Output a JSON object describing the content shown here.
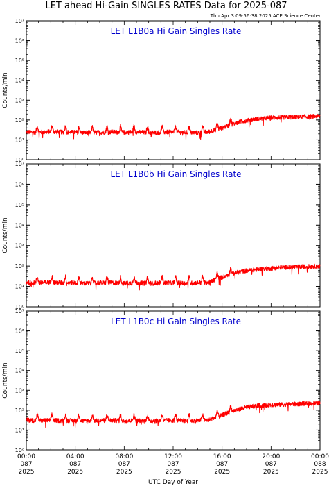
{
  "title": "LET ahead Hi-Gain SINGLES RATES Data for 2025-087",
  "timestamp": "Thu Apr  3 09:56:38 2025 ACE Science Center",
  "xlabel": "UTC Day of Year",
  "colors": {
    "trace": "#ff0000",
    "panel_title": "#0000cc",
    "axis": "#000000"
  },
  "chart_data": [
    {
      "type": "line",
      "title": "LET L1B0a Hi Gain Singles Rate",
      "ylabel": "Counts/min",
      "yscale": "log",
      "ylim": [
        1,
        10000000
      ],
      "ytick_labels": [
        "10⁰",
        "10¹",
        "10²",
        "10³",
        "10⁴",
        "10⁵",
        "10⁶",
        "10⁷"
      ],
      "xlim": [
        "087 00:00",
        "088 00:00"
      ],
      "series": [
        {
          "values_by_hour": [
            25,
            24,
            26,
            25,
            24,
            23,
            24,
            25,
            24,
            25,
            23,
            24,
            25,
            24,
            23,
            26,
            40,
            65,
            95,
            115,
            130,
            135,
            140,
            150,
            155
          ],
          "spikes_by_hour": [
            0.9,
            2.1,
            3.2,
            4.3,
            5.4,
            6.6,
            7.7,
            8.8,
            9.9,
            11.1,
            12.2,
            13.3,
            14.4,
            15.6,
            16.7
          ]
        }
      ]
    },
    {
      "type": "line",
      "title": "LET L1B0b Hi Gain Singles Rate",
      "ylabel": "Counts/min",
      "yscale": "log",
      "ylim": [
        1,
        10000000
      ],
      "ytick_labels": [
        "10⁰",
        "10¹",
        "10²",
        "10³",
        "10⁴",
        "10⁵",
        "10⁶",
        "10⁷"
      ],
      "xlim": [
        "087 00:00",
        "088 00:00"
      ],
      "series": [
        {
          "values_by_hour": [
            16,
            15,
            16,
            15,
            15,
            14,
            15,
            15,
            14,
            15,
            14,
            15,
            15,
            14,
            15,
            16,
            28,
            45,
            60,
            70,
            78,
            85,
            90,
            95,
            100
          ],
          "spikes_by_hour": [
            0.9,
            2.1,
            3.2,
            4.3,
            5.4,
            6.6,
            7.7,
            8.8,
            9.9,
            11.1,
            12.2,
            13.3,
            14.4,
            15.6,
            16.7
          ]
        }
      ]
    },
    {
      "type": "line",
      "title": "LET L1B0c Hi Gain Singles Rate",
      "ylabel": "Counts/min",
      "yscale": "log",
      "ylim": [
        1,
        10000000
      ],
      "ytick_labels": [
        "10⁰",
        "10¹",
        "10²",
        "10³",
        "10⁴",
        "10⁵",
        "10⁶",
        "10⁷"
      ],
      "xlim": [
        "087 00:00",
        "088 00:00"
      ],
      "series": [
        {
          "values_by_hour": [
            32,
            30,
            31,
            30,
            30,
            29,
            30,
            31,
            29,
            30,
            29,
            30,
            31,
            29,
            30,
            33,
            55,
            95,
            140,
            170,
            185,
            195,
            205,
            215,
            225
          ],
          "spikes_by_hour": [
            0.9,
            2.1,
            3.2,
            4.3,
            5.4,
            6.6,
            7.7,
            8.8,
            9.9,
            11.1,
            12.2,
            13.3,
            14.4,
            15.6,
            16.7
          ]
        }
      ]
    }
  ],
  "xticks": [
    {
      "time": "00:00",
      "day": "087",
      "year": "2025"
    },
    {
      "time": "04:00",
      "day": "087",
      "year": "2025"
    },
    {
      "time": "08:00",
      "day": "087",
      "year": "2025"
    },
    {
      "time": "12:00",
      "day": "087",
      "year": "2025"
    },
    {
      "time": "16:00",
      "day": "087",
      "year": "2025"
    },
    {
      "time": "20:00",
      "day": "087",
      "year": "2025"
    },
    {
      "time": "00:00",
      "day": "088",
      "year": "2025"
    }
  ]
}
